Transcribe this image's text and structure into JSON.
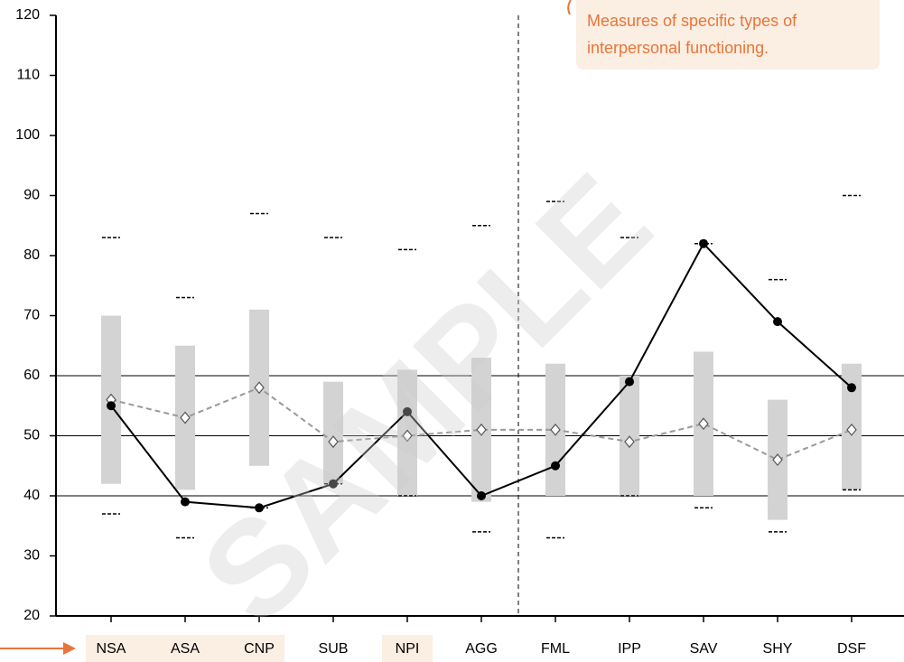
{
  "chart_data": {
    "type": "profile",
    "categories": [
      "NSA",
      "ASA",
      "CNP",
      "SUB",
      "NPI",
      "AGG",
      "FML",
      "IPP",
      "SAV",
      "SHY",
      "DSF"
    ],
    "highlight": [
      true,
      true,
      true,
      false,
      true,
      false,
      false,
      false,
      false,
      false,
      false
    ],
    "series": [
      {
        "color": "#000000",
        "style": "solid",
        "marker": "circle",
        "values": [
          55,
          39,
          38,
          42,
          54,
          40,
          45,
          59,
          82,
          69,
          58
        ]
      },
      {
        "color": "#999999",
        "style": "dashed",
        "marker": "diamond",
        "values": [
          56,
          53,
          58,
          49,
          50,
          51,
          51,
          49,
          52,
          46,
          51
        ]
      }
    ],
    "ranges": {
      "color": "#d3d3d3",
      "low": [
        42,
        41,
        45,
        42,
        40,
        39,
        40,
        40,
        40,
        36,
        41
      ],
      "high": [
        70,
        65,
        71,
        59,
        61,
        63,
        62,
        60,
        64,
        56,
        62
      ]
    },
    "limits": {
      "high": [
        83,
        73,
        87,
        83,
        81,
        85,
        89,
        83,
        82,
        76,
        90
      ],
      "low": [
        37,
        33,
        38,
        42,
        40,
        34,
        33,
        40,
        38,
        34,
        41
      ]
    },
    "ylim": [
      20,
      120
    ],
    "yticks": [
      20,
      30,
      40,
      50,
      60,
      70,
      80,
      90,
      100,
      110,
      120
    ],
    "grid_values": [
      40,
      50,
      60
    ],
    "divider_after": 5,
    "annotation": [
      "Measures of specific types of",
      "interpersonal functioning."
    ],
    "watermark": "SAMPLE"
  }
}
